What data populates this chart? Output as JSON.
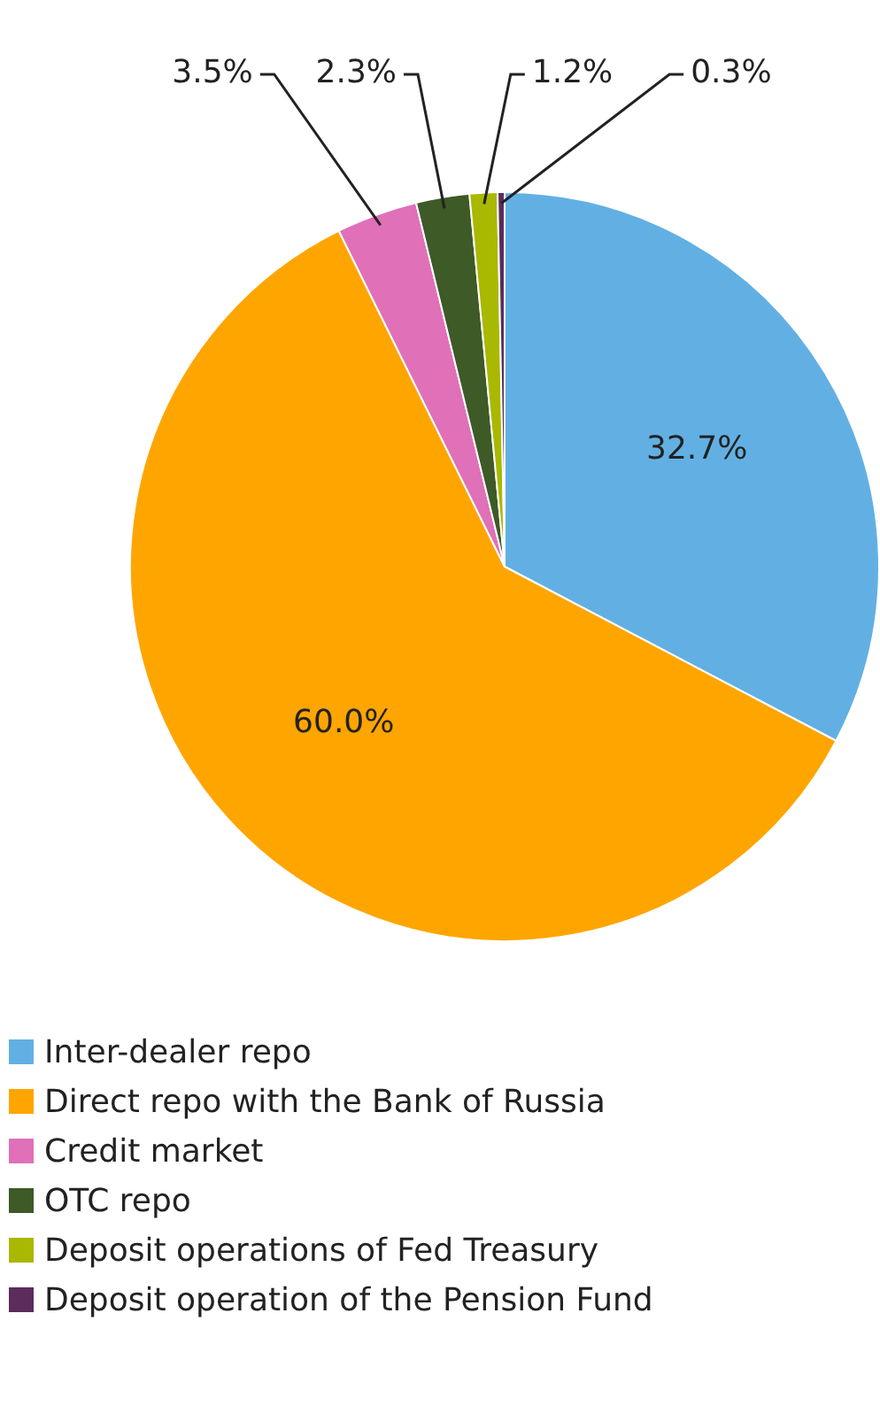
{
  "chart_data": {
    "type": "pie",
    "categories": [
      "Inter-dealer repo",
      "Direct repo with the Bank of Russia",
      "Credit market",
      "OTC repo",
      "Deposit operations of Fed Treasury",
      "Deposit operation of the Pension Fund"
    ],
    "values": [
      32.7,
      60.0,
      3.5,
      2.3,
      1.2,
      0.3
    ],
    "colors": [
      "#62b0e3",
      "#ffa500",
      "#e070b8",
      "#3d5a27",
      "#a9b800",
      "#5b2c5c"
    ],
    "value_labels": [
      "32.7%",
      "60.0%",
      "3.5%",
      "2.3%",
      "1.2%",
      "0.3%"
    ],
    "legend": "bottom"
  }
}
